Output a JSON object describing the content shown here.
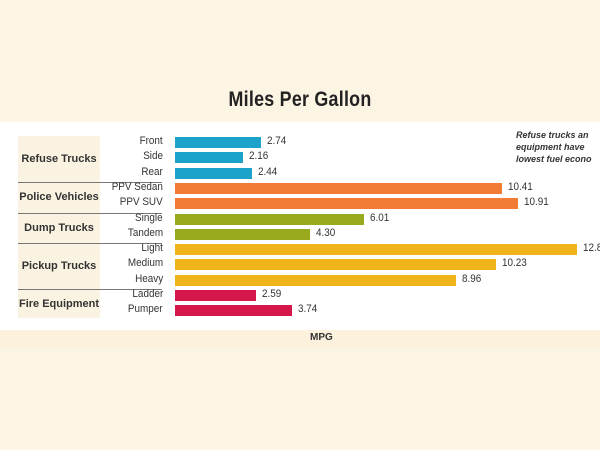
{
  "chart_data": {
    "type": "bar",
    "orientation": "horizontal",
    "title": "Miles Per Gallon",
    "xlabel": "MPG",
    "ylabel": "",
    "xlim": [
      0,
      13
    ],
    "grid": false,
    "annotation": [
      "Refuse trucks an",
      "equipment have",
      "lowest fuel econo"
    ],
    "groups": [
      {
        "name": "Refuse Trucks",
        "color": "#1ba3c9",
        "categories": [
          "Front",
          "Side",
          "Rear"
        ],
        "values": [
          2.74,
          2.16,
          2.44
        ],
        "labels": [
          "2.74",
          "2.16",
          "2.44"
        ]
      },
      {
        "name": "Police Vehicles",
        "color": "#f27b36",
        "categories": [
          "PPV Sedan",
          "PPV SUV"
        ],
        "values": [
          10.41,
          10.91
        ],
        "labels": [
          "10.41",
          "10.91"
        ]
      },
      {
        "name": "Dump Trucks",
        "color": "#9aaa1e",
        "categories": [
          "Single",
          "Tandem"
        ],
        "values": [
          6.01,
          4.3
        ],
        "labels": [
          "6.01",
          "4.30"
        ]
      },
      {
        "name": "Pickup Trucks",
        "color": "#f0b41b",
        "categories": [
          "Light",
          "Medium",
          "Heavy"
        ],
        "values": [
          12.8,
          10.23,
          8.96
        ],
        "labels": [
          "12.8",
          "10.23",
          "8.96"
        ]
      },
      {
        "name": "Fire Equipment",
        "color": "#d6174b",
        "categories": [
          "Ladder",
          "Pumper"
        ],
        "values": [
          2.59,
          3.74
        ],
        "labels": [
          "2.59",
          "3.74"
        ]
      }
    ]
  }
}
